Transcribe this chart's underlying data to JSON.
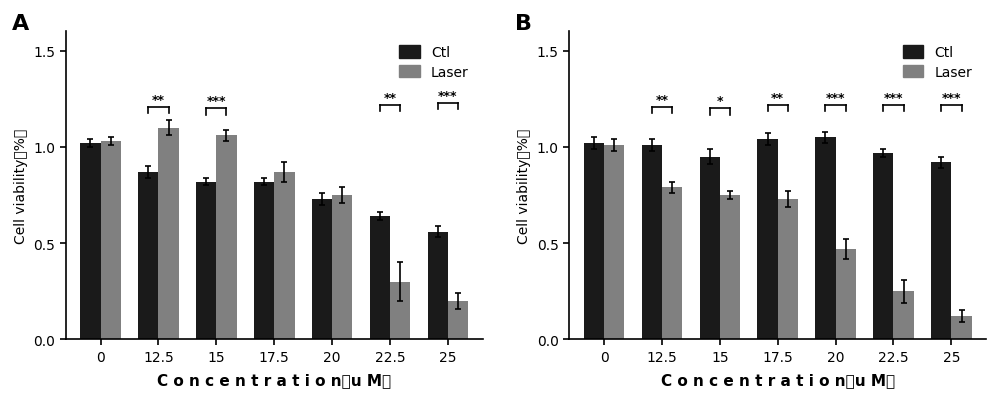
{
  "categories": [
    "0",
    "12.5",
    "15",
    "17.5",
    "20",
    "22.5",
    "25"
  ],
  "panel_A": {
    "ctl_values": [
      1.02,
      0.87,
      0.82,
      0.82,
      0.73,
      0.64,
      0.56
    ],
    "ctl_errors": [
      0.02,
      0.03,
      0.02,
      0.02,
      0.03,
      0.02,
      0.03
    ],
    "laser_values": [
      1.03,
      1.1,
      1.06,
      0.87,
      0.75,
      0.3,
      0.2
    ],
    "laser_errors": [
      0.02,
      0.04,
      0.03,
      0.05,
      0.04,
      0.1,
      0.04
    ],
    "sig_labels": [
      "**",
      "***",
      "",
      "",
      "**",
      "***"
    ],
    "sig_positions": [
      1,
      2,
      3,
      4,
      5,
      6
    ],
    "bracket_heights": [
      1.21,
      1.2,
      1.22,
      1.23,
      1.22,
      1.23
    ],
    "title": "A"
  },
  "panel_B": {
    "ctl_values": [
      1.02,
      1.01,
      0.95,
      1.04,
      1.05,
      0.97,
      0.92
    ],
    "ctl_errors": [
      0.03,
      0.03,
      0.04,
      0.03,
      0.03,
      0.02,
      0.03
    ],
    "laser_values": [
      1.01,
      0.79,
      0.75,
      0.73,
      0.47,
      0.25,
      0.12
    ],
    "laser_errors": [
      0.03,
      0.03,
      0.02,
      0.04,
      0.05,
      0.06,
      0.03
    ],
    "sig_labels": [
      "**",
      "*",
      "**",
      "***",
      "***",
      "***"
    ],
    "sig_positions": [
      1,
      2,
      3,
      4,
      5,
      6
    ],
    "bracket_heights": [
      1.21,
      1.2,
      1.22,
      1.22,
      1.22,
      1.22
    ],
    "title": "B"
  },
  "bar_width": 0.35,
  "ctl_color": "#1a1a1a",
  "laser_color": "#808080",
  "ylabel": "Cell viability（%）",
  "xlabel": "C o n c e n t r a t i o n（u M）",
  "ylim": [
    0,
    1.6
  ],
  "yticks": [
    0.0,
    0.5,
    1.0,
    1.5
  ],
  "legend_labels": [
    "Ctl",
    "Laser"
  ]
}
